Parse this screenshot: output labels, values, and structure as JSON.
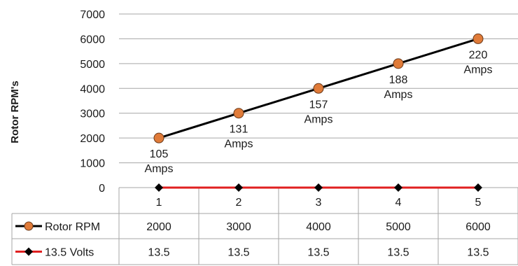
{
  "chart_data": {
    "type": "line",
    "title": "",
    "xlabel": "",
    "ylabel": "Rotor RPM's",
    "categories": [
      "1",
      "2",
      "3",
      "4",
      "5"
    ],
    "ylim": [
      0,
      7000
    ],
    "yticks": [
      "0",
      "1000",
      "2000",
      "3000",
      "4000",
      "5000",
      "6000",
      "7000"
    ],
    "grid": true,
    "legend": "data-table",
    "series": [
      {
        "name": "Rotor RPM",
        "values": [
          2000,
          3000,
          4000,
          5000,
          6000
        ],
        "table_values": [
          "2000",
          "3000",
          "4000",
          "5000",
          "6000"
        ],
        "line_color": "#000000",
        "marker": "circle",
        "marker_color": "#e07b39",
        "data_labels": [
          [
            "105",
            "Amps"
          ],
          [
            "131",
            "Amps"
          ],
          [
            "157",
            "Amps"
          ],
          [
            "188",
            "Amps"
          ],
          [
            "220",
            "Amps"
          ]
        ]
      },
      {
        "name": "13.5 Volts",
        "values": [
          13.5,
          13.5,
          13.5,
          13.5,
          13.5
        ],
        "table_values": [
          "13.5",
          "13.5",
          "13.5",
          "13.5",
          "13.5"
        ],
        "line_color": "#e02020",
        "marker": "diamond",
        "marker_color": "#000000"
      }
    ]
  }
}
